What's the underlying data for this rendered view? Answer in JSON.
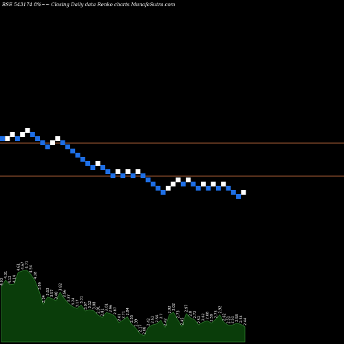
{
  "header": {
    "title": "BSE 543174  8%~~  Closing Daily data  Renko  charts MunafaSutra.com"
  },
  "colors": {
    "background": "#000000",
    "brick_up": "#ffffff",
    "brick_down": "#1e6fe6",
    "level_line": "#b4643a",
    "volume_fill": "#0a3d0a",
    "volume_stroke": "#2e7d2e",
    "text": "#ffffff"
  },
  "chart_data": [
    {
      "type": "renko",
      "bricks": [
        {
          "dir": "down",
          "level": 11
        },
        {
          "dir": "up",
          "level": 11
        },
        {
          "dir": "up",
          "level": 12
        },
        {
          "dir": "down",
          "level": 11
        },
        {
          "dir": "up",
          "level": 12
        },
        {
          "dir": "up",
          "level": 13
        },
        {
          "dir": "down",
          "level": 12
        },
        {
          "dir": "down",
          "level": 11
        },
        {
          "dir": "down",
          "level": 10
        },
        {
          "dir": "down",
          "level": 9
        },
        {
          "dir": "up",
          "level": 10
        },
        {
          "dir": "up",
          "level": 11
        },
        {
          "dir": "down",
          "level": 10
        },
        {
          "dir": "down",
          "level": 9
        },
        {
          "dir": "down",
          "level": 8
        },
        {
          "dir": "down",
          "level": 7
        },
        {
          "dir": "down",
          "level": 6
        },
        {
          "dir": "down",
          "level": 5
        },
        {
          "dir": "down",
          "level": 4
        },
        {
          "dir": "up",
          "level": 5
        },
        {
          "dir": "down",
          "level": 4
        },
        {
          "dir": "down",
          "level": 3
        },
        {
          "dir": "down",
          "level": 2
        },
        {
          "dir": "up",
          "level": 3
        },
        {
          "dir": "down",
          "level": 2
        },
        {
          "dir": "up",
          "level": 3
        },
        {
          "dir": "down",
          "level": 2
        },
        {
          "dir": "up",
          "level": 3
        },
        {
          "dir": "down",
          "level": 2
        },
        {
          "dir": "down",
          "level": 1
        },
        {
          "dir": "down",
          "level": 0
        },
        {
          "dir": "down",
          "level": -1
        },
        {
          "dir": "down",
          "level": -2
        },
        {
          "dir": "up",
          "level": -1
        },
        {
          "dir": "up",
          "level": 0
        },
        {
          "dir": "up",
          "level": 1
        },
        {
          "dir": "down",
          "level": 0
        },
        {
          "dir": "up",
          "level": 1
        },
        {
          "dir": "down",
          "level": 0
        },
        {
          "dir": "down",
          "level": -1
        },
        {
          "dir": "up",
          "level": 0
        },
        {
          "dir": "down",
          "level": -1
        },
        {
          "dir": "up",
          "level": 0
        },
        {
          "dir": "down",
          "level": -1
        },
        {
          "dir": "up",
          "level": 0
        },
        {
          "dir": "down",
          "level": -1
        },
        {
          "dir": "down",
          "level": -2
        },
        {
          "dir": "down",
          "level": -3
        },
        {
          "dir": "up",
          "level": -2
        }
      ],
      "level_lines": [
        10,
        2
      ]
    },
    {
      "type": "area",
      "values": [
        4.03,
        4.31,
        4.12,
        4.14,
        4.61,
        4.67,
        4.71,
        4.54,
        4.28,
        3.86,
        3.34,
        3.63,
        3.57,
        3.48,
        3.82,
        3.56,
        3.37,
        3.24,
        3.17,
        3.31,
        3.07,
        3.12,
        3.08,
        2.91,
        2.81,
        3.01,
        2.96,
        2.87,
        2.61,
        2.71,
        2.84,
        2.55,
        2.39,
        2.17,
        2.08,
        2.42,
        2.52,
        2.56,
        2.7,
        2.42,
        2.92,
        3.02,
        2.73,
        2.45,
        2.97,
        2.8,
        2.72,
        2.52,
        2.62,
        2.68,
        2.59,
        2.73,
        2.92,
        2.62,
        2.51,
        2.51,
        2.58,
        2.54,
        2.44
      ],
      "labels": [
        "4.03",
        "4.31",
        "4.12",
        "4.14",
        "4.61",
        "4.67",
        "4.71",
        "4.54",
        "4.28",
        "3.86",
        "3.34",
        "3.63",
        "3.57",
        "3.48",
        "3.82",
        "3.56",
        "3.37",
        "3.24",
        "3.17",
        "3.31",
        "3.07",
        "3.12",
        "3.08",
        "2.91",
        "2.81",
        "3.01",
        "2.96",
        "2.87",
        "2.61",
        "2.71",
        "2.84",
        "2.55",
        "2.39",
        "2.17",
        "2.08",
        "2.42",
        "2.52",
        "2.56",
        "2.7",
        "2.42",
        "2.92",
        "3.02",
        "2.73",
        "2.45",
        "2.97",
        "2.8",
        "2.72",
        "2.52",
        "2.62",
        "2.68",
        "2.59",
        "2.73",
        "2.92",
        "2.62",
        "2.51",
        "2.51",
        "2.58",
        "2.54",
        "2.44"
      ]
    }
  ]
}
